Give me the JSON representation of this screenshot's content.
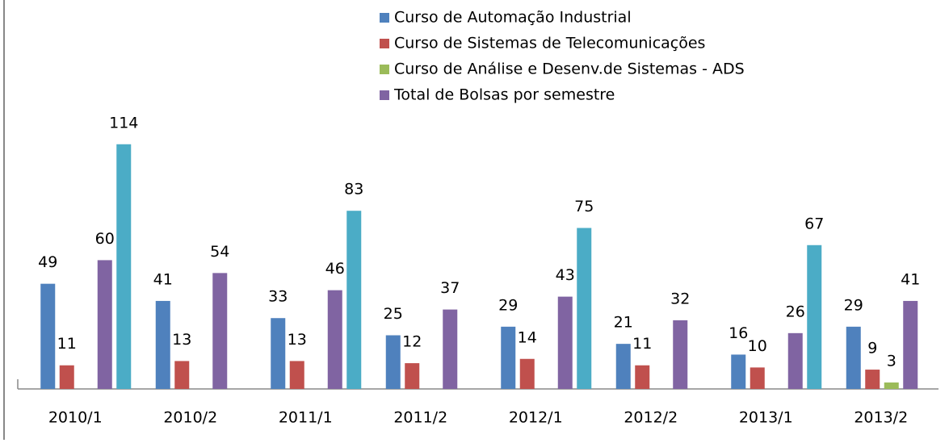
{
  "chart_data": {
    "type": "bar",
    "categories": [
      "2010/1",
      "2010/2",
      "2011/1",
      "2011/2",
      "2012/1",
      "2012/2",
      "2013/1",
      "2013/2"
    ],
    "series": [
      {
        "name": "Curso de  Automação Industrial",
        "color": "#4f81bd",
        "values": [
          49,
          41,
          33,
          25,
          29,
          21,
          16,
          29
        ]
      },
      {
        "name": "Curso de Sistemas de Telecomunicações",
        "color": "#c0504d",
        "values": [
          11,
          13,
          13,
          12,
          14,
          11,
          10,
          9
        ]
      },
      {
        "name": "Curso de Análise e Desenv.de Sistemas - ADS",
        "color": "#9bbb59",
        "values": [
          null,
          null,
          null,
          null,
          null,
          null,
          null,
          3
        ]
      },
      {
        "name": "Total de Bolsas  por semestre",
        "color": "#8064a2",
        "values": [
          60,
          54,
          46,
          37,
          43,
          32,
          26,
          41
        ]
      },
      {
        "color": "#4bacc6",
        "values": [
          114,
          null,
          83,
          null,
          75,
          null,
          67,
          null
        ]
      }
    ],
    "ylim": [
      0,
      120
    ],
    "legend": "top"
  }
}
